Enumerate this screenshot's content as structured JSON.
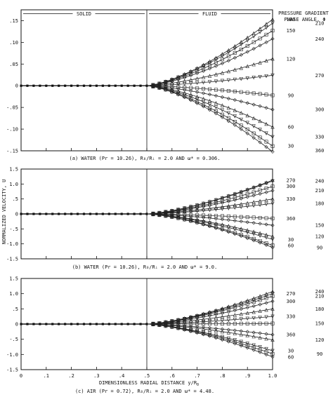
{
  "figure": {
    "ylabel": "NORMALIZED VELOCITY, U",
    "xlabel": "DIMENSIONLESS RADIAL DISTANCE y/R",
    "xlabel_sub": "0",
    "xticks": [
      "0",
      ".1",
      ".2",
      ".3",
      ".4",
      ".5",
      ".6",
      ".7",
      ".8",
      ".9",
      "1.0"
    ],
    "region_solid": "SOLID",
    "region_fluid": "FLUID",
    "legend_title_1": "PRESSURE GRADIENT",
    "legend_title_2": "PHASE ANGLE, Φ"
  },
  "chart_data": [
    {
      "type": "line",
      "panel": "a",
      "caption": "(a) WATER (Pr = 10.26), R₀/Rᵢ = 2.0 AND ω* = 0.306.",
      "xlim": [
        0,
        1.0
      ],
      "ylim": [
        -0.15,
        0.175
      ],
      "yticks": [
        ".15",
        ".10",
        ".05",
        "0",
        "-.05",
        "-.10",
        "-.15"
      ],
      "ytick_values": [
        0.15,
        0.1,
        0.05,
        0,
        -0.05,
        -0.1,
        -0.15
      ],
      "interface_x": 0.5,
      "series": [
        {
          "name": "180",
          "label_col": "left",
          "wall_value": 0.153
        },
        {
          "name": "210",
          "label_col": "right",
          "wall_value": 0.144
        },
        {
          "name": "150",
          "label_col": "left",
          "wall_value": 0.127
        },
        {
          "name": "240",
          "label_col": "right",
          "wall_value": 0.108
        },
        {
          "name": "120",
          "label_col": "left",
          "wall_value": 0.062
        },
        {
          "name": "270",
          "label_col": "right",
          "wall_value": 0.024
        },
        {
          "name": "90",
          "label_col": "left",
          "wall_value": -0.022
        },
        {
          "name": "300",
          "label_col": "right",
          "wall_value": -0.055
        },
        {
          "name": "60",
          "label_col": "left",
          "wall_value": -0.095
        },
        {
          "name": "330",
          "label_col": "right",
          "wall_value": -0.118
        },
        {
          "name": "30",
          "label_col": "left",
          "wall_value": -0.139
        },
        {
          "name": "360",
          "label_col": "right",
          "wall_value": -0.152
        }
      ]
    },
    {
      "type": "line",
      "panel": "b",
      "caption": "(b) WATER (Pr = 10.26), R₀/Rᵢ = 2.0 AND ω* = 9.0.",
      "xlim": [
        0,
        1.0
      ],
      "ylim": [
        -1.5,
        1.5
      ],
      "yticks": [
        "1.5",
        "1.0",
        ".5",
        "0",
        "-.5",
        "-1.0",
        "-1.5"
      ],
      "ytick_values": [
        1.5,
        1.0,
        0.5,
        0,
        -0.5,
        -1.0,
        -1.5
      ],
      "interface_x": 0.5,
      "series": [
        {
          "name": "270",
          "label_col": "left",
          "wall_value": 1.13
        },
        {
          "name": "240",
          "label_col": "right",
          "wall_value": 1.1
        },
        {
          "name": "300",
          "label_col": "left",
          "wall_value": 0.92
        },
        {
          "name": "210",
          "label_col": "right",
          "wall_value": 0.78
        },
        {
          "name": "330",
          "label_col": "left",
          "wall_value": 0.5
        },
        {
          "name": "180",
          "label_col": "right",
          "wall_value": 0.35
        },
        {
          "name": "360",
          "label_col": "left",
          "wall_value": -0.15
        },
        {
          "name": "150",
          "label_col": "right",
          "wall_value": -0.38
        },
        {
          "name": "120",
          "label_col": "right",
          "wall_value": -0.75
        },
        {
          "name": "30",
          "label_col": "left",
          "wall_value": -0.85
        },
        {
          "name": "60",
          "label_col": "left",
          "wall_value": -1.05
        },
        {
          "name": "90",
          "label_col": "right",
          "wall_value": -1.12
        }
      ]
    },
    {
      "type": "line",
      "panel": "c",
      "caption": "(c) AIR (Pr = 0.72), R₀/Rᵢ = 2.0 AND ω* = 4.48.",
      "xlim": [
        0,
        1.0
      ],
      "ylim": [
        -1.5,
        1.5
      ],
      "yticks": [
        "1.5",
        "1.0",
        ".5",
        "0",
        "-.5",
        "-1.0",
        "-1.5"
      ],
      "ytick_values": [
        1.5,
        1.0,
        0.5,
        0,
        -0.5,
        -1.0,
        -1.5
      ],
      "interface_x": 0.5,
      "series": [
        {
          "name": "240",
          "label_col": "right",
          "wall_value": 1.07
        },
        {
          "name": "270",
          "label_col": "left",
          "wall_value": 1.0
        },
        {
          "name": "210",
          "label_col": "right",
          "wall_value": 0.92
        },
        {
          "name": "300",
          "label_col": "left",
          "wall_value": 0.75
        },
        {
          "name": "180",
          "label_col": "right",
          "wall_value": 0.5
        },
        {
          "name": "330",
          "label_col": "left",
          "wall_value": 0.25
        },
        {
          "name": "150",
          "label_col": "right",
          "wall_value": 0.02
        },
        {
          "name": "360",
          "label_col": "left",
          "wall_value": -0.35
        },
        {
          "name": "120",
          "label_col": "right",
          "wall_value": -0.52
        },
        {
          "name": "30",
          "label_col": "left",
          "wall_value": -0.88
        },
        {
          "name": "90",
          "label_col": "right",
          "wall_value": -0.98
        },
        {
          "name": "60",
          "label_col": "left",
          "wall_value": -1.08
        }
      ]
    }
  ]
}
